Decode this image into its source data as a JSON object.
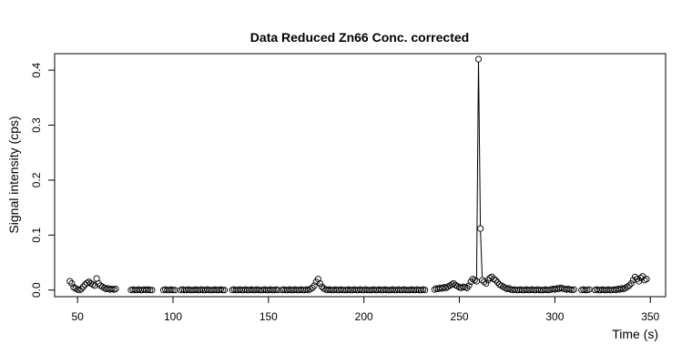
{
  "chart_data": {
    "type": "scatter",
    "title": "Data Reduced Zn66 Conc. corrected",
    "xlabel": "Time (s)",
    "ylabel": "Signal intensity (cps)",
    "xlim": [
      38,
      358
    ],
    "ylim": [
      -0.012,
      0.43
    ],
    "x_ticks": [
      50,
      100,
      150,
      200,
      250,
      300,
      350
    ],
    "x_tick_labels": [
      "50",
      "100",
      "150",
      "200",
      "250",
      "300",
      "350"
    ],
    "y_ticks": [
      0.0,
      0.1,
      0.2,
      0.3,
      0.4
    ],
    "y_tick_labels": [
      "0.0",
      "0.1",
      "0.2",
      "0.3",
      "0.4"
    ],
    "grid": false,
    "legend": "none",
    "marker": "open-circle",
    "line_segments": true,
    "segments": [
      {
        "x": [
          46,
          47,
          48,
          49,
          50,
          51,
          52,
          53,
          54,
          55,
          56,
          57,
          58,
          59,
          60,
          61,
          62,
          63,
          64,
          65,
          66,
          67,
          68,
          69,
          70
        ],
        "y": [
          0.016,
          0.012,
          0.005,
          0.003,
          0.001,
          0.0,
          0.002,
          0.006,
          0.01,
          0.013,
          0.015,
          0.012,
          0.01,
          0.008,
          0.021,
          0.012,
          0.008,
          0.006,
          0.004,
          0.002,
          0.003,
          0.001,
          0.002,
          0.001,
          0.002
        ]
      },
      {
        "x": [
          78,
          79,
          80,
          81,
          82,
          83,
          84,
          85,
          86,
          87,
          88,
          89
        ],
        "y": [
          0.0,
          0.001,
          0.0,
          0.0,
          0.001,
          0.0,
          0.0,
          0.001,
          0.0,
          0.001,
          0.0,
          0.0
        ]
      },
      {
        "x": [
          95,
          96,
          97,
          98,
          99,
          100,
          101
        ],
        "y": [
          0.0,
          0.001,
          0.0,
          0.0,
          0.001,
          0.0,
          0.0
        ]
      },
      {
        "x": [
          104,
          105,
          106,
          107,
          108,
          109,
          110,
          111,
          112,
          113,
          114,
          115,
          116,
          117,
          118,
          119,
          120,
          121,
          122,
          123,
          124,
          125,
          126,
          127
        ],
        "y": [
          0.0,
          0.001,
          0.0,
          0.0,
          0.001,
          0.0,
          0.0,
          0.0,
          0.001,
          0.0,
          0.0,
          0.001,
          0.0,
          0.0,
          0.001,
          0.0,
          0.0,
          0.0,
          0.001,
          0.0,
          0.0,
          0.001,
          0.0,
          0.0
        ]
      },
      {
        "x": [
          131,
          132,
          133,
          134,
          135,
          136,
          137,
          138,
          139,
          140,
          141,
          142,
          143,
          144,
          145,
          146,
          147,
          148,
          149,
          150,
          151,
          152,
          153,
          154,
          155
        ],
        "y": [
          0.0,
          0.001,
          0.0,
          0.0,
          0.001,
          0.0,
          0.0,
          0.001,
          0.0,
          0.0,
          0.001,
          0.0,
          0.0,
          0.001,
          0.0,
          0.0,
          0.0,
          0.001,
          0.0,
          0.0,
          0.001,
          0.0,
          0.0,
          0.001,
          0.0
        ]
      },
      {
        "x": [
          157,
          158,
          159,
          160,
          161,
          162,
          163,
          164,
          165,
          166,
          167,
          168,
          169,
          170,
          171,
          172,
          173,
          174,
          175,
          176,
          177,
          178,
          179,
          180,
          181,
          182,
          183,
          184,
          185,
          186,
          187,
          188,
          189,
          190,
          191,
          192,
          193,
          194,
          195,
          196,
          197,
          198,
          199,
          200,
          201,
          202,
          203,
          204,
          205,
          206,
          207,
          208,
          209,
          210,
          211,
          212,
          213,
          214,
          215,
          216,
          217,
          218,
          219,
          220,
          221,
          222,
          223,
          224,
          225,
          226,
          227,
          228,
          229,
          230,
          231,
          232
        ],
        "y": [
          0.0,
          0.001,
          0.0,
          0.0,
          0.001,
          0.0,
          0.0,
          0.001,
          0.0,
          0.0,
          0.001,
          0.0,
          0.0,
          0.001,
          0.0,
          0.002,
          0.004,
          0.008,
          0.015,
          0.02,
          0.012,
          0.006,
          0.003,
          0.001,
          0.0,
          0.001,
          0.0,
          0.0,
          0.001,
          0.0,
          0.0,
          0.001,
          0.0,
          0.0,
          0.0,
          0.001,
          0.0,
          0.0,
          0.001,
          0.0,
          0.0,
          0.001,
          0.0,
          0.0,
          0.001,
          0.0,
          0.0,
          0.0,
          0.001,
          0.0,
          0.0,
          0.001,
          0.0,
          0.0,
          0.001,
          0.0,
          0.0,
          0.0,
          0.001,
          0.0,
          0.0,
          0.001,
          0.0,
          0.0,
          0.001,
          0.0,
          0.0,
          0.0,
          0.001,
          0.0,
          0.0,
          0.001,
          0.0,
          0.0,
          0.001,
          0.0
        ]
      },
      {
        "x": [
          237,
          238,
          239,
          240,
          241,
          242,
          243,
          244,
          245,
          246,
          247,
          248,
          249,
          250,
          251,
          252,
          253,
          254,
          255,
          256,
          257,
          258,
          259,
          260,
          261,
          262,
          263,
          264,
          265,
          266,
          267,
          268,
          269,
          270,
          271,
          272,
          273,
          274,
          275,
          276,
          277,
          278,
          279,
          280,
          281,
          282,
          283,
          284,
          285,
          286,
          287,
          288,
          289,
          290,
          291,
          292,
          293,
          294,
          295,
          296,
          297,
          298,
          299,
          300,
          301,
          302,
          303,
          304,
          305,
          306,
          307,
          308,
          309,
          310
        ],
        "y": [
          0.001,
          0.003,
          0.002,
          0.004,
          0.003,
          0.005,
          0.004,
          0.006,
          0.008,
          0.01,
          0.012,
          0.009,
          0.007,
          0.005,
          0.004,
          0.006,
          0.005,
          0.004,
          0.008,
          0.015,
          0.02,
          0.018,
          0.016,
          0.42,
          0.112,
          0.018,
          0.015,
          0.012,
          0.018,
          0.022,
          0.024,
          0.02,
          0.018,
          0.014,
          0.01,
          0.008,
          0.006,
          0.004,
          0.002,
          0.003,
          0.001,
          0.0,
          0.001,
          0.0,
          0.0,
          0.001,
          0.0,
          0.0,
          0.001,
          0.0,
          0.0,
          0.001,
          0.0,
          0.0,
          0.001,
          0.0,
          0.0,
          0.0,
          0.001,
          0.0,
          0.0,
          0.001,
          0.002,
          0.001,
          0.003,
          0.002,
          0.004,
          0.003,
          0.002,
          0.001,
          0.002,
          0.001,
          0.0,
          0.001
        ]
      },
      {
        "x": [
          314,
          315,
          316,
          317,
          318
        ],
        "y": [
          0.0,
          0.001,
          0.0,
          0.0,
          0.001
        ]
      },
      {
        "x": [
          321,
          322,
          323,
          324,
          325,
          326,
          327,
          328,
          329,
          330,
          331,
          332,
          333,
          334,
          335,
          336,
          337,
          338,
          339,
          340,
          341,
          342,
          343,
          344,
          345,
          346,
          347,
          348
        ],
        "y": [
          0.0,
          0.001,
          0.0,
          0.0,
          0.001,
          0.0,
          0.0,
          0.001,
          0.0,
          0.0,
          0.001,
          0.0,
          0.002,
          0.001,
          0.003,
          0.002,
          0.004,
          0.006,
          0.008,
          0.012,
          0.018,
          0.024,
          0.02,
          0.016,
          0.022,
          0.025,
          0.018,
          0.02
        ]
      }
    ]
  }
}
